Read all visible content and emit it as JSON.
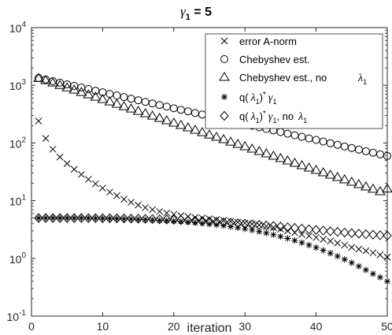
{
  "chart_data": {
    "type": "scatter",
    "title": "γ1 = 5",
    "title_parts": {
      "symbol": "γ",
      "subscript": "1",
      "rest": " = 5"
    },
    "xlabel": "iteration",
    "ylabel": "",
    "xlim": [
      0,
      50
    ],
    "ylim": [
      0.1,
      10000
    ],
    "yscale": "log",
    "xticks": [
      0,
      10,
      20,
      30,
      40,
      50
    ],
    "yticks": [
      {
        "base": "10",
        "exp": "-1",
        "value": 0.1
      },
      {
        "base": "10",
        "exp": "0",
        "value": 1
      },
      {
        "base": "10",
        "exp": "1",
        "value": 10
      },
      {
        "base": "10",
        "exp": "2",
        "value": 100
      },
      {
        "base": "10",
        "exp": "3",
        "value": 1000
      },
      {
        "base": "10",
        "exp": "4",
        "value": 10000
      }
    ],
    "grid": false,
    "legend_position": "top-right",
    "series": [
      {
        "name": "error A-norm",
        "marker": "x",
        "x": [
          1,
          2,
          3,
          4,
          5,
          6,
          7,
          8,
          9,
          10,
          11,
          12,
          13,
          14,
          15,
          16,
          17,
          18,
          19,
          20,
          21,
          22,
          23,
          24,
          25,
          26,
          27,
          28,
          29,
          30,
          31,
          32,
          33,
          34,
          35,
          36,
          37,
          38,
          39,
          40,
          41,
          42,
          43,
          44,
          45,
          46,
          47,
          48,
          49,
          50
        ],
        "y": [
          240,
          120,
          78,
          57,
          44,
          35,
          28.5,
          23.5,
          19.6,
          16.5,
          14.1,
          12.2,
          10.6,
          9.4,
          8.4,
          7.6,
          7.0,
          6.5,
          6.1,
          5.8,
          5.5,
          5.3,
          5.1,
          5.0,
          4.85,
          4.7,
          4.55,
          4.4,
          4.25,
          4.1,
          3.95,
          3.8,
          3.6,
          3.4,
          3.2,
          3.0,
          2.8,
          2.6,
          2.45,
          2.3,
          2.15,
          2.0,
          1.85,
          1.7,
          1.55,
          1.45,
          1.35,
          1.25,
          1.15,
          1.05
        ]
      },
      {
        "name": "Chebyshev est.",
        "marker": "o",
        "x": [
          1,
          2,
          3,
          4,
          5,
          6,
          7,
          8,
          9,
          10,
          11,
          12,
          13,
          14,
          15,
          16,
          17,
          18,
          19,
          20,
          21,
          22,
          23,
          24,
          25,
          26,
          27,
          28,
          29,
          30,
          31,
          32,
          33,
          34,
          35,
          36,
          37,
          38,
          39,
          40,
          41,
          42,
          43,
          44,
          45,
          46,
          47,
          48,
          49,
          50
        ],
        "y": [
          1340,
          1260,
          1180,
          1110,
          1040,
          975,
          915,
          860,
          805,
          756,
          709,
          666,
          625,
          586,
          550,
          516,
          485,
          455,
          427,
          400,
          376,
          353,
          331,
          311,
          292,
          274,
          257,
          241,
          226,
          212,
          199,
          187,
          175,
          165,
          155,
          145,
          136,
          128,
          120,
          113,
          106,
          99,
          93,
          87,
          82,
          77,
          72,
          68,
          63.5,
          59.5
        ]
      },
      {
        "name": "Chebyshev est., no λ1",
        "marker": "triangle",
        "x": [
          1,
          2,
          3,
          4,
          5,
          6,
          7,
          8,
          9,
          10,
          11,
          12,
          13,
          14,
          15,
          16,
          17,
          18,
          19,
          20,
          21,
          22,
          23,
          24,
          25,
          26,
          27,
          28,
          29,
          30,
          31,
          32,
          33,
          34,
          35,
          36,
          37,
          38,
          39,
          40,
          41,
          42,
          43,
          44,
          45,
          46,
          47,
          48,
          49,
          50
        ],
        "y": [
          1320,
          1210,
          1100,
          1000,
          910,
          830,
          755,
          687,
          625,
          569,
          518,
          471,
          429,
          390,
          355,
          323,
          294,
          268,
          244,
          222,
          202,
          184,
          167,
          152,
          138,
          126,
          115,
          104,
          95,
          86.5,
          78.7,
          71.6,
          65.2,
          59.3,
          54.0,
          49.1,
          44.7,
          40.7,
          37.0,
          33.7,
          30.6,
          27.9,
          25.4,
          23.1,
          21.0,
          19.1,
          17.4,
          15.9,
          14.4,
          16.0
        ]
      },
      {
        "name": "q(λ1)* γ1",
        "marker": "asterisk",
        "x": [
          1,
          2,
          3,
          4,
          5,
          6,
          7,
          8,
          9,
          10,
          11,
          12,
          13,
          14,
          15,
          16,
          17,
          18,
          19,
          20,
          21,
          22,
          23,
          24,
          25,
          26,
          27,
          28,
          29,
          30,
          31,
          32,
          33,
          34,
          35,
          36,
          37,
          38,
          39,
          40,
          41,
          42,
          43,
          44,
          45,
          46,
          47,
          48,
          49,
          50
        ],
        "y": [
          5.0,
          5.0,
          5.0,
          5.0,
          5.0,
          5.0,
          5.0,
          4.98,
          4.96,
          4.94,
          4.91,
          4.88,
          4.84,
          4.8,
          4.75,
          4.7,
          4.64,
          4.58,
          4.51,
          4.43,
          4.35,
          4.26,
          4.16,
          4.05,
          3.94,
          3.82,
          3.69,
          3.55,
          3.4,
          3.25,
          3.09,
          2.92,
          2.75,
          2.57,
          2.4,
          2.22,
          2.04,
          1.87,
          1.7,
          1.54,
          1.38,
          1.23,
          1.09,
          0.96,
          0.84,
          0.73,
          0.63,
          0.54,
          0.47,
          0.4
        ]
      },
      {
        "name": "q(λ1)* γ1, no λ1",
        "marker": "diamond",
        "x": [
          1,
          2,
          3,
          4,
          5,
          6,
          7,
          8,
          9,
          10,
          11,
          12,
          13,
          14,
          15,
          16,
          17,
          18,
          19,
          20,
          21,
          22,
          23,
          24,
          25,
          26,
          27,
          28,
          29,
          30,
          31,
          32,
          33,
          34,
          35,
          36,
          37,
          38,
          39,
          40,
          41,
          42,
          43,
          44,
          45,
          46,
          47,
          48,
          49,
          50
        ],
        "y": [
          5.0,
          5.0,
          5.0,
          5.0,
          5.0,
          5.0,
          5.0,
          4.99,
          4.98,
          4.97,
          4.96,
          4.94,
          4.92,
          4.9,
          4.87,
          4.84,
          4.8,
          4.76,
          4.72,
          4.67,
          4.62,
          4.56,
          4.5,
          4.44,
          4.37,
          4.3,
          4.22,
          4.14,
          4.06,
          3.98,
          3.9,
          3.81,
          3.72,
          3.64,
          3.55,
          3.46,
          3.37,
          3.28,
          3.19,
          3.11,
          3.03,
          2.95,
          2.88,
          2.81,
          2.74,
          2.68,
          2.62,
          2.57,
          2.52,
          2.48
        ]
      }
    ],
    "legend": [
      {
        "marker": "x",
        "text": "error A-norm"
      },
      {
        "marker": "o",
        "text": "Chebyshev est."
      },
      {
        "marker": "triangle",
        "text": "Chebyshev est., no",
        "lambda_far": "λ",
        "lambda_sub": "1"
      },
      {
        "marker": "asterisk",
        "text": "q(",
        "lambda": "λ",
        "lambda_sub": "1",
        "tail": ")",
        "star": "*",
        "gamma": "γ",
        "gamma_sub": "1"
      },
      {
        "marker": "diamond",
        "text": "q(",
        "lambda": "λ",
        "lambda_sub": "1",
        "tail": ")",
        "star": "*",
        "gamma": "γ",
        "gamma_sub": "1",
        "extra": ", no",
        "lambda2": "λ",
        "lambda2_sub": "1"
      }
    ]
  }
}
